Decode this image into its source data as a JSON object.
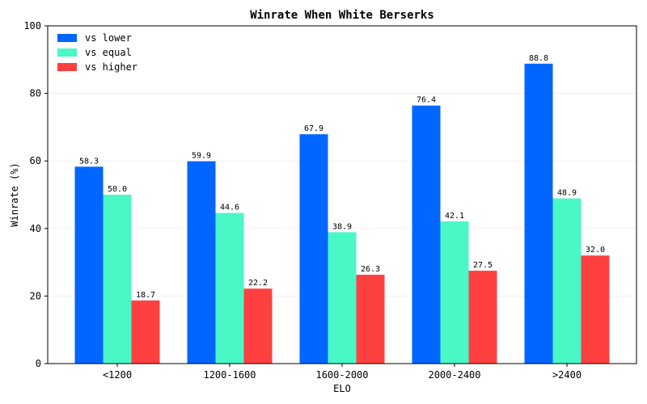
{
  "chart_data": {
    "type": "bar",
    "title": "Winrate When White Berserks",
    "xlabel": "ELO",
    "ylabel": "Winrate (%)",
    "ylim": [
      0,
      100
    ],
    "yticks": [
      0,
      20,
      40,
      60,
      80,
      100
    ],
    "grid": "horizontal, faint",
    "legend": "top-left",
    "categories": [
      "<1200",
      "1200-1600",
      "1600-2000",
      "2000-2400",
      ">2400"
    ],
    "series": [
      {
        "name": "vs lower",
        "color": "#0066ff",
        "values": [
          58.3,
          59.9,
          67.9,
          76.4,
          88.8
        ]
      },
      {
        "name": "vs equal",
        "color": "#4af7c7",
        "values": [
          50.0,
          44.6,
          38.9,
          42.1,
          48.9
        ]
      },
      {
        "name": "vs higher",
        "color": "#ff4040",
        "values": [
          18.7,
          22.2,
          26.3,
          27.5,
          32.0
        ]
      }
    ]
  }
}
